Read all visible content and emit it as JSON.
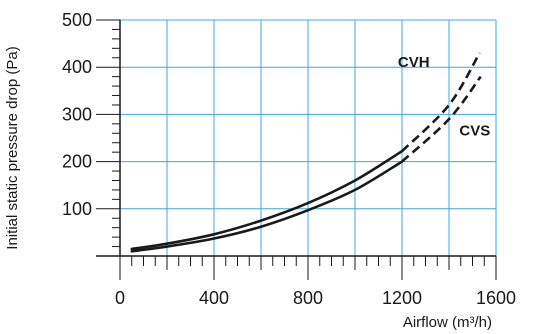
{
  "chart_data": {
    "type": "line",
    "xlabel": "Airflow (m³/h)",
    "ylabel": "Initial static pressure drop (Pa)",
    "xlim": [
      0,
      1600
    ],
    "ylim": [
      0,
      500
    ],
    "x_ticks": [
      0,
      400,
      800,
      1200,
      1600
    ],
    "y_ticks": [
      100,
      200,
      300,
      400,
      500
    ],
    "x_tick_labels": [
      "0",
      "400",
      "800",
      "1200",
      "1600"
    ],
    "y_tick_labels": [
      "100",
      "200",
      "300",
      "400",
      "500"
    ],
    "x_grid": [
      0,
      200,
      400,
      600,
      800,
      1000,
      1200,
      1400,
      1600
    ],
    "y_grid": [
      100,
      200,
      300,
      400,
      500
    ],
    "x_minor_step": 50,
    "y_minor_step": 20,
    "grid_color": "#3fa7e0",
    "line_color": "#1a1a1a",
    "series": [
      {
        "name": "CVH",
        "solid_until": 1200,
        "x": [
          50,
          200,
          400,
          600,
          800,
          1000,
          1200,
          1400,
          1530
        ],
        "y": [
          15,
          26,
          46,
          75,
          112,
          160,
          222,
          320,
          430
        ]
      },
      {
        "name": "CVS",
        "solid_until": 1200,
        "x": [
          50,
          200,
          400,
          600,
          800,
          1000,
          1200,
          1400,
          1535
        ],
        "y": [
          10,
          20,
          37,
          62,
          97,
          140,
          200,
          290,
          380
        ]
      }
    ],
    "labels": [
      {
        "text": "CVH",
        "x": 1250,
        "y": 400
      },
      {
        "text": "CVS",
        "x": 1510,
        "y": 255
      }
    ]
  }
}
